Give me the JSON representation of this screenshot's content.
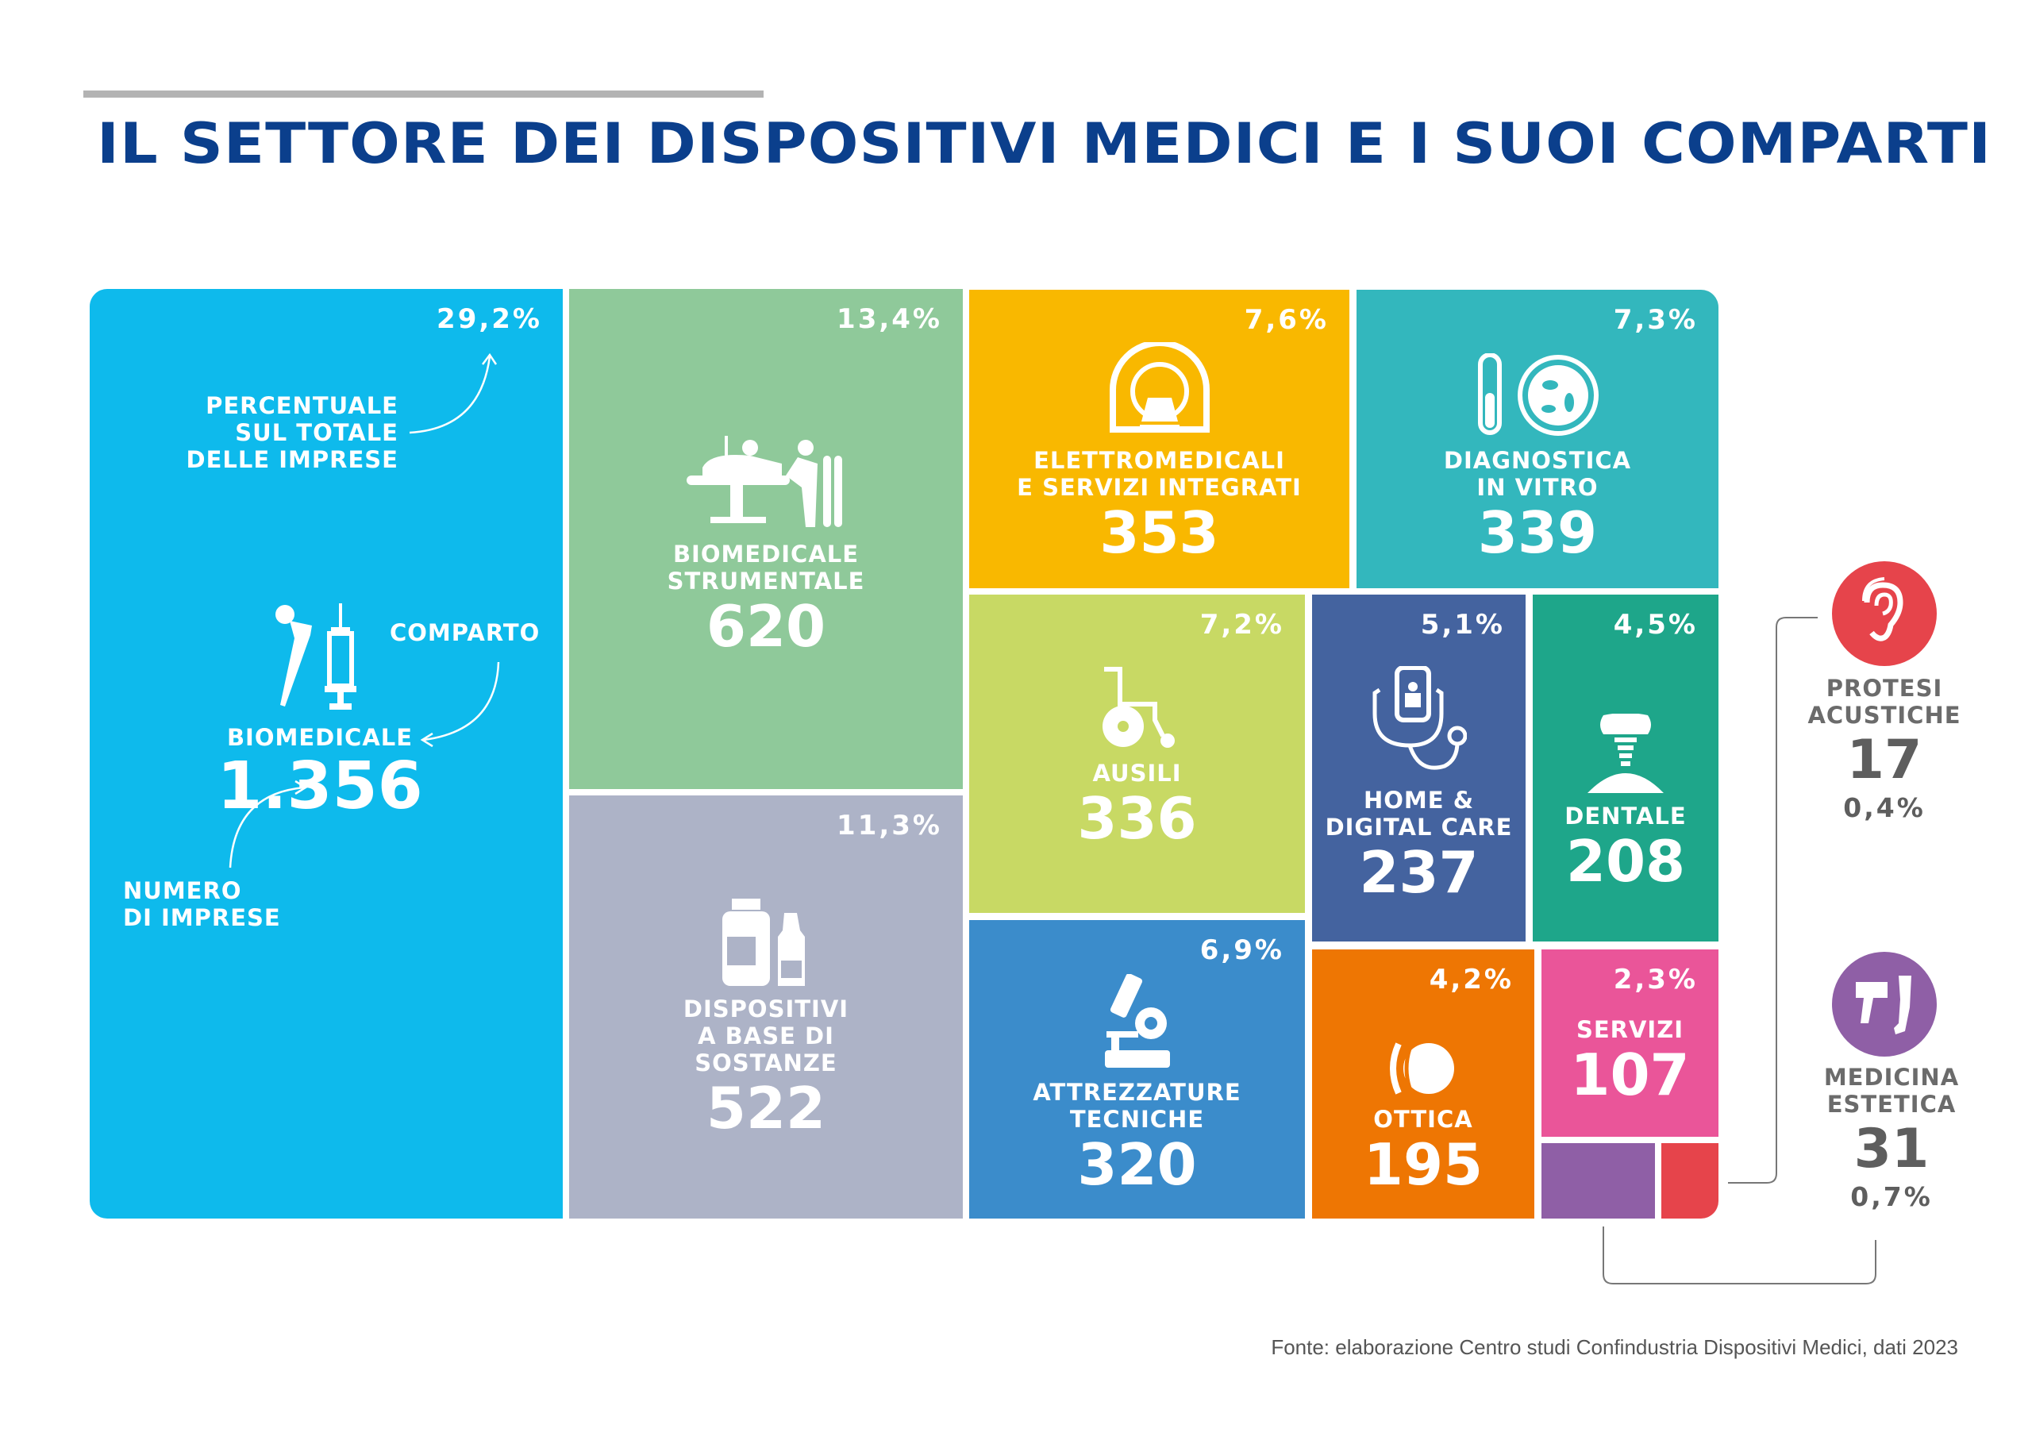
{
  "title": "IL SETTORE DEI DISPOSITIVI MEDICI E I SUOI COMPARTI",
  "source": "Fonte: elaborazione Centro studi Confindustria Dispositivi Medici, dati 2023",
  "legend": {
    "percent_note": [
      "PERCENTUALE",
      "SUL TOTALE",
      "DELLE IMPRESE"
    ],
    "segment_note": "COMPARTO",
    "count_note": [
      "NUMERO",
      "DI IMPRESE"
    ]
  },
  "chart_data": {
    "type": "treemap",
    "title": "IL SETTORE DEI DISPOSITIVI MEDICI E I SUOI COMPARTI",
    "unit": "numero di imprese",
    "items": [
      {
        "name": "BIOMEDICALE",
        "lines": [
          "BIOMEDICALE"
        ],
        "value": "1.356",
        "percent": "29,2%",
        "color": "#0ebaec",
        "icon": "prosthesis-syringe-icon"
      },
      {
        "name": "BIOMEDICALE STRUMENTALE",
        "lines": [
          "BIOMEDICALE",
          "STRUMENTALE"
        ],
        "value": "620",
        "percent": "13,4%",
        "color": "#8fc99a",
        "icon": "surgery-icon"
      },
      {
        "name": "DISPOSITIVI A BASE DI SOSTANZE",
        "lines": [
          "DISPOSITIVI",
          "A BASE DI",
          "SOSTANZE"
        ],
        "value": "522",
        "percent": "11,3%",
        "color": "#adb3c7",
        "icon": "bottles-icon"
      },
      {
        "name": "ELETTROMEDICALI E SERVIZI INTEGRATI",
        "lines": [
          "ELETTROMEDICALI",
          "E SERVIZI INTEGRATI"
        ],
        "value": "353",
        "percent": "7,6%",
        "color": "#f9b800",
        "icon": "mri-scanner-icon"
      },
      {
        "name": "DIAGNOSTICA IN VITRO",
        "lines": [
          "DIAGNOSTICA",
          "IN VITRO"
        ],
        "value": "339",
        "percent": "7,3%",
        "color": "#33b7bd",
        "icon": "test-tube-petri-icon"
      },
      {
        "name": "AUSILI",
        "lines": [
          "AUSILI"
        ],
        "value": "336",
        "percent": "7,2%",
        "color": "#c8d964",
        "icon": "wheelchair-icon"
      },
      {
        "name": "ATTREZZATURE TECNICHE",
        "lines": [
          "ATTREZZATURE",
          "TECNICHE"
        ],
        "value": "320",
        "percent": "6,9%",
        "color": "#3b8ccb",
        "icon": "microscope-icon"
      },
      {
        "name": "HOME & DIGITAL CARE",
        "lines": [
          "HOME &",
          "DIGITAL CARE"
        ],
        "value": "237",
        "percent": "5,1%",
        "color": "#44639f",
        "icon": "phone-stethoscope-icon"
      },
      {
        "name": "DENTALE",
        "lines": [
          "DENTALE"
        ],
        "value": "208",
        "percent": "4,5%",
        "color": "#1ea68a",
        "icon": "dental-implant-icon"
      },
      {
        "name": "OTTICA",
        "lines": [
          "OTTICA"
        ],
        "value": "195",
        "percent": "4,2%",
        "color": "#ee7603",
        "icon": "eye-lens-icon"
      },
      {
        "name": "SERVIZI",
        "lines": [
          "SERVIZI"
        ],
        "value": "107",
        "percent": "2,3%",
        "color": "#ea5599",
        "icon": ""
      },
      {
        "name": "MEDICINA ESTETICA",
        "lines": [
          "MEDICINA",
          "ESTETICA"
        ],
        "value": "31",
        "percent": "0,7%",
        "color": "#8f5fa6",
        "icon": "laser-leg-icon"
      },
      {
        "name": "PROTESI ACUSTICHE",
        "lines": [
          "PROTESI",
          "ACUSTICHE"
        ],
        "value": "17",
        "percent": "0,4%",
        "color": "#e6444b",
        "icon": "ear-icon"
      }
    ]
  }
}
